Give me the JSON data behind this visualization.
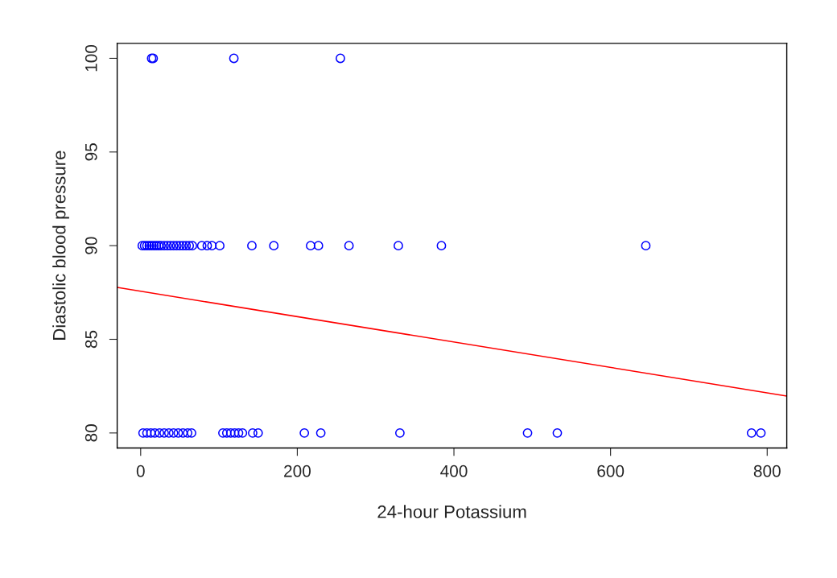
{
  "chart_data": {
    "type": "scatter",
    "xlabel": "24-hour Potassium",
    "ylabel": "Diastolic blood pressure",
    "xlim": [
      -30,
      825
    ],
    "ylim": [
      79.2,
      100.8
    ],
    "xticks": [
      0,
      200,
      400,
      600,
      800
    ],
    "yticks": [
      80,
      85,
      90,
      95,
      100
    ],
    "grid": false,
    "legend": false,
    "series": [
      {
        "marker": "circle",
        "color": "#0000ff",
        "x": [
          2,
          5,
          8,
          11,
          14,
          17,
          20,
          23,
          26,
          30,
          34,
          38,
          42,
          46,
          50,
          54,
          58,
          62,
          66,
          78,
          85,
          91,
          101,
          142,
          170,
          217,
          227,
          266,
          329,
          384,
          645,
          3,
          8,
          13,
          18,
          24,
          30,
          36,
          42,
          48,
          54,
          60,
          65,
          105,
          110,
          115,
          120,
          125,
          130,
          143,
          150,
          209,
          230,
          331,
          494,
          532,
          780,
          792,
          14,
          16,
          119,
          255
        ],
        "values": [
          90,
          90,
          90,
          90,
          90,
          90,
          90,
          90,
          90,
          90,
          90,
          90,
          90,
          90,
          90,
          90,
          90,
          90,
          90,
          90,
          90,
          90,
          90,
          90,
          90,
          90,
          90,
          90,
          90,
          90,
          90,
          80,
          80,
          80,
          80,
          80,
          80,
          80,
          80,
          80,
          80,
          80,
          80,
          80,
          80,
          80,
          80,
          80,
          80,
          80,
          80,
          80,
          80,
          80,
          80,
          80,
          80,
          80,
          100,
          100,
          100,
          100
        ]
      },
      {
        "type": "line",
        "color": "#ff0000",
        "x": [
          -30,
          825
        ],
        "values": [
          87.77,
          81.97
        ]
      }
    ]
  }
}
